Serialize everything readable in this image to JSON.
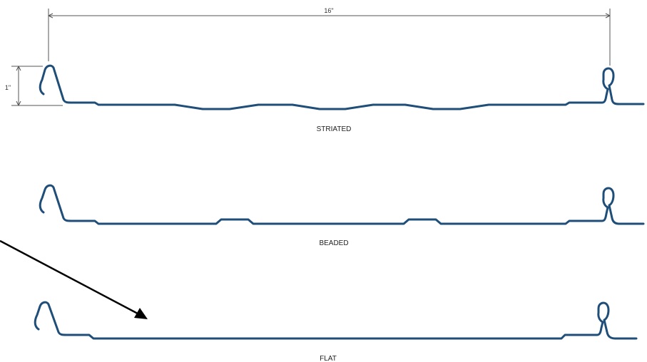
{
  "dimensions": {
    "width_label": "16\"",
    "height_label": "1\""
  },
  "profiles": [
    {
      "label": "STRIATED"
    },
    {
      "label": "BEADED"
    },
    {
      "label": "FLAT"
    }
  ],
  "colors": {
    "panel": "#1f4e79",
    "arrow": "#000000"
  }
}
